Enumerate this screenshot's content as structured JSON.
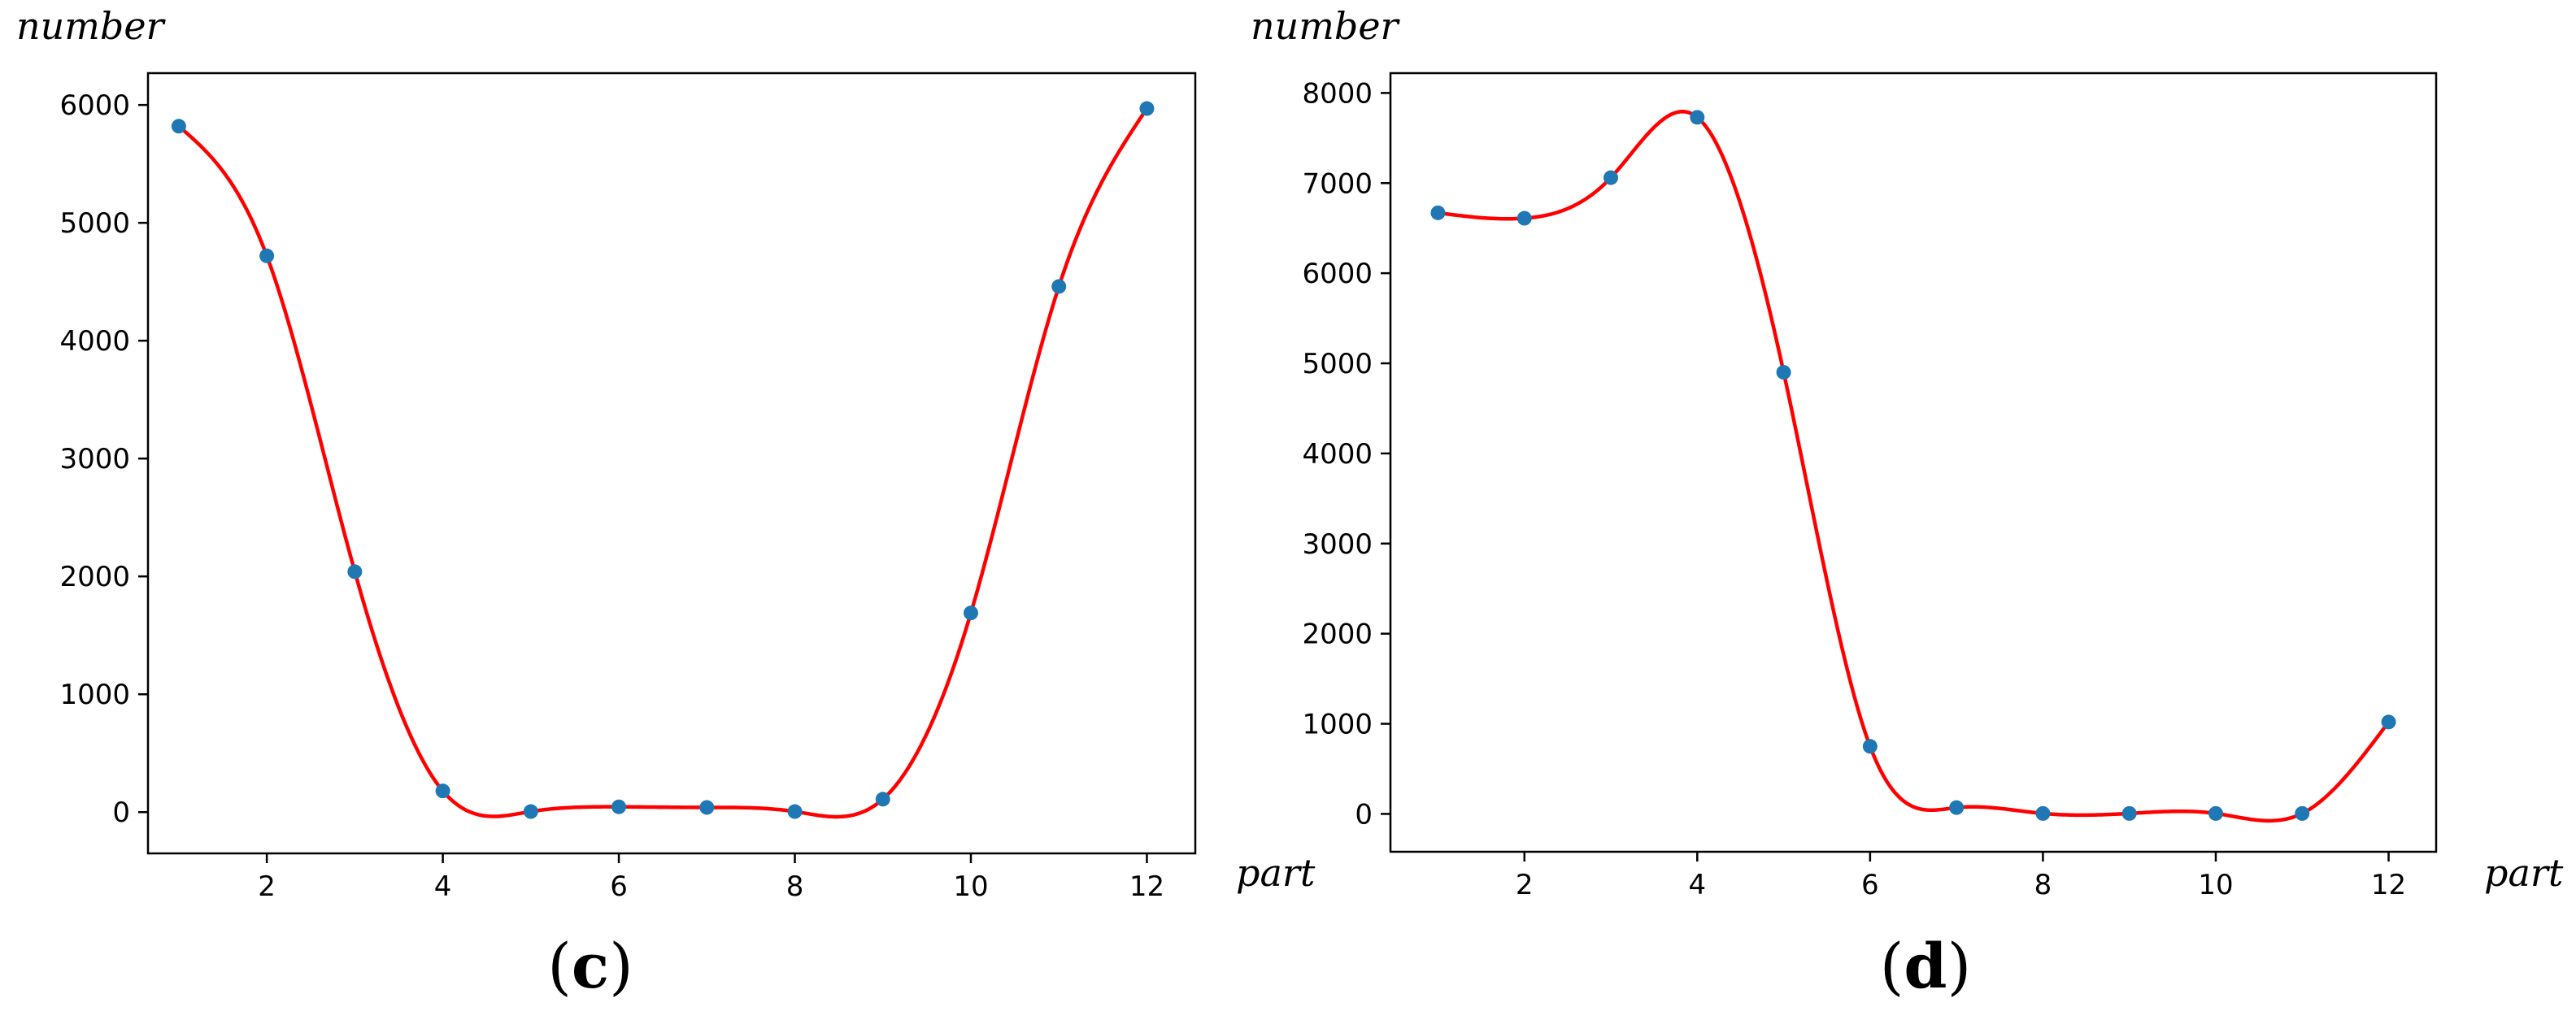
{
  "chart_data": [
    {
      "type": "scatter",
      "panel_label": "(c)",
      "panel_letter": "c",
      "xlabel": "part",
      "ylabel": "number",
      "xlim": [
        0.65,
        12.55
      ],
      "ylim": [
        -350,
        6270
      ],
      "xticks": [
        2,
        4,
        6,
        8,
        10,
        12
      ],
      "yticks": [
        0,
        1000,
        2000,
        3000,
        4000,
        5000,
        6000
      ],
      "points_color": "#1f77b4",
      "curve_color": "#ff0000",
      "grid": false,
      "series": [
        {
          "x": [
            1,
            2,
            3,
            4,
            5,
            6,
            7,
            8,
            9,
            10,
            11,
            12
          ],
          "y": [
            5820,
            4720,
            2040,
            180,
            5,
            45,
            40,
            5,
            110,
            1690,
            4460,
            5970
          ]
        }
      ]
    },
    {
      "type": "scatter",
      "panel_label": "(d)",
      "panel_letter": "d",
      "xlabel": "part",
      "ylabel": "number",
      "xlim": [
        0.45,
        12.55
      ],
      "ylim": [
        -420,
        8220
      ],
      "xticks": [
        2,
        4,
        6,
        8,
        10,
        12
      ],
      "yticks": [
        0,
        1000,
        2000,
        3000,
        4000,
        5000,
        6000,
        7000,
        8000
      ],
      "points_color": "#1f77b4",
      "curve_color": "#ff0000",
      "grid": false,
      "series": [
        {
          "x": [
            1,
            2,
            3,
            4,
            5,
            6,
            7,
            8,
            9,
            10,
            11,
            12
          ],
          "y": [
            6670,
            6610,
            7060,
            7730,
            4900,
            750,
            70,
            5,
            5,
            5,
            5,
            1020
          ]
        }
      ]
    }
  ]
}
